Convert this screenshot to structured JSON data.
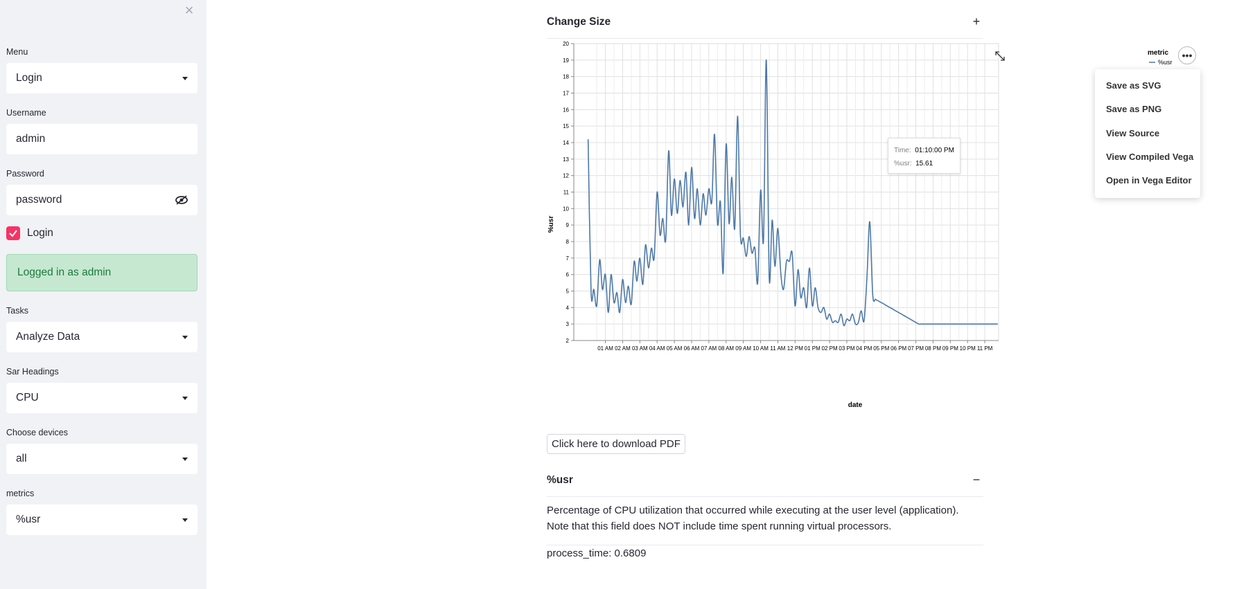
{
  "sidebar": {
    "close_icon": "×",
    "menu": {
      "label": "Menu",
      "value": "Login"
    },
    "username": {
      "label": "Username",
      "value": "admin"
    },
    "password": {
      "label": "Password",
      "value": "password"
    },
    "login_checkbox": {
      "label": "Login",
      "checked": true
    },
    "status": "Logged in as admin",
    "tasks": {
      "label": "Tasks",
      "value": "Analyze Data"
    },
    "sar_headings": {
      "label": "Sar Headings",
      "value": "CPU"
    },
    "devices": {
      "label": "Choose devices",
      "value": "all"
    },
    "metrics": {
      "label": "metrics",
      "value": "%usr"
    }
  },
  "main": {
    "change_size": {
      "title": "Change Size",
      "toggle": "+"
    },
    "download_button": "Click here to download PDF",
    "metric_section": {
      "title": "%usr",
      "toggle": "−",
      "description": "Percentage of CPU utilization that occurred while executing at the user level (application). Note that this field does NOT include time spent running virtual processors.",
      "process_time": "process_time: 0.6809"
    }
  },
  "actions_menu": {
    "button": "•••",
    "items": [
      "Save as SVG",
      "Save as PNG",
      "View Source",
      "View Compiled Vega",
      "Open in Vega Editor"
    ]
  },
  "tooltip": {
    "time_label": "Time:",
    "time_value": "01:10:00 PM",
    "metric_label": "%usr:",
    "metric_value": "15.61"
  },
  "chart_data": {
    "type": "line",
    "title": "",
    "xlabel": "date",
    "ylabel": "%usr",
    "ylim": [
      2,
      20
    ],
    "yticks": [
      "2",
      "3",
      "4",
      "5",
      "6",
      "7",
      "8",
      "9",
      "10",
      "11",
      "12",
      "13",
      "14",
      "15",
      "16",
      "17",
      "18",
      "19",
      "20"
    ],
    "xticks": [
      "01 AM",
      "02 AM",
      "03 AM",
      "04 AM",
      "05 AM",
      "06 AM",
      "07 AM",
      "08 AM",
      "09 AM",
      "10 AM",
      "11 AM",
      "12 PM",
      "01 PM",
      "02 PM",
      "03 PM",
      "04 PM",
      "05 PM",
      "06 PM",
      "07 PM",
      "08 PM",
      "09 PM",
      "10 PM",
      "11 PM"
    ],
    "legend": {
      "title": "metric",
      "position": "top-right",
      "entries": [
        "%usr"
      ]
    },
    "grid": true,
    "color": "#4c78a8",
    "series": [
      {
        "name": "%usr",
        "x_hours": [
          0,
          0.17,
          0.33,
          0.5,
          0.67,
          0.83,
          1,
          1.17,
          1.33,
          1.5,
          1.67,
          1.83,
          2,
          2.17,
          2.33,
          2.5,
          2.67,
          2.83,
          3,
          3.17,
          3.33,
          3.5,
          3.67,
          3.83,
          4,
          4.17,
          4.33,
          4.5,
          4.67,
          4.83,
          5,
          5.17,
          5.33,
          5.5,
          5.67,
          5.83,
          6,
          6.17,
          6.33,
          6.5,
          6.67,
          6.83,
          7,
          7.17,
          7.33,
          7.5,
          7.67,
          7.83,
          8,
          8.17,
          8.33,
          8.5,
          8.67,
          8.83,
          9,
          9.17,
          9.33,
          9.5,
          9.67,
          9.83,
          10,
          10.17,
          10.33,
          10.5,
          10.67,
          10.83,
          11,
          11.17,
          11.33,
          11.5,
          11.67,
          11.83,
          12,
          12.17,
          12.33,
          12.5,
          12.67,
          12.83,
          13,
          13.17,
          13.33,
          13.5,
          13.67,
          13.83,
          14,
          14.17,
          14.33,
          14.5,
          14.67,
          14.83,
          15,
          15.17,
          15.33,
          15.5,
          15.67,
          15.83,
          16,
          16.17,
          16.33,
          16.5,
          16.67,
          16.83,
          17,
          17.17,
          17.33,
          17.5,
          17.67,
          17.83,
          18,
          18.17,
          18.33,
          18.5,
          18.67,
          18.83,
          19,
          19.17,
          19.33,
          19.5,
          19.67,
          19.83,
          20,
          20.17,
          20.33,
          20.5,
          20.67,
          20.83,
          21,
          21.17,
          21.33,
          21.5,
          21.67,
          21.83,
          22,
          22.17,
          22.33,
          22.5,
          22.67,
          22.83,
          23,
          23.17,
          23.33,
          23.5,
          23.67,
          23.75
        ],
        "values": [
          14.2,
          5.0,
          5.1,
          4.1,
          6.9,
          5.1,
          6.0,
          3.7,
          6.0,
          4.3,
          4.9,
          3.7,
          5.7,
          4.3,
          5.3,
          4.2,
          6.8,
          5.6,
          7.0,
          5.4,
          7.8,
          6.4,
          7.6,
          7.0,
          11.0,
          8.4,
          9.4,
          8.1,
          13.5,
          9.6,
          11.8,
          9.7,
          11.7,
          10.1,
          12.2,
          9.0,
          12.5,
          9.4,
          11.2,
          9.0,
          10.9,
          9.6,
          11.2,
          10.4,
          14.5,
          9.1,
          10.4,
          6.1,
          13.9,
          9.1,
          11.9,
          8.8,
          15.6,
          8.4,
          8.2,
          7.1,
          8.3,
          7.3,
          7.6,
          5.5,
          11.1,
          8.1,
          19.0,
          5.8,
          9.3,
          6.5,
          8.8,
          6.1,
          5.1,
          6.8,
          6.8,
          7.3,
          4.1,
          6.3,
          4.6,
          5.2,
          4.0,
          6.4,
          4.1,
          5.2,
          4.0,
          3.7,
          4.0,
          3.3,
          3.6,
          3.1,
          3.2,
          3.1,
          3.6,
          2.9,
          3.3,
          3.2,
          3.6,
          3.0,
          3.1,
          3.8,
          3.2,
          5.9,
          9.2,
          4.8,
          4.5,
          4.4,
          4.3,
          4.2,
          4.1,
          4.0,
          3.9,
          3.8,
          3.7,
          3.6,
          3.5,
          3.4,
          3.3,
          3.2,
          3.1,
          3.0,
          3.0,
          3.0,
          3.0,
          3.0,
          3.0,
          3.0,
          3.0,
          3.0,
          3.0,
          3.0,
          3.0,
          3.0,
          3.0,
          3.0,
          3.0,
          3.0,
          3.0,
          3.0,
          3.0,
          3.0,
          3.0,
          3.0,
          3.0,
          3.0,
          3.0,
          3.0,
          3.0,
          3.0
        ]
      }
    ]
  }
}
